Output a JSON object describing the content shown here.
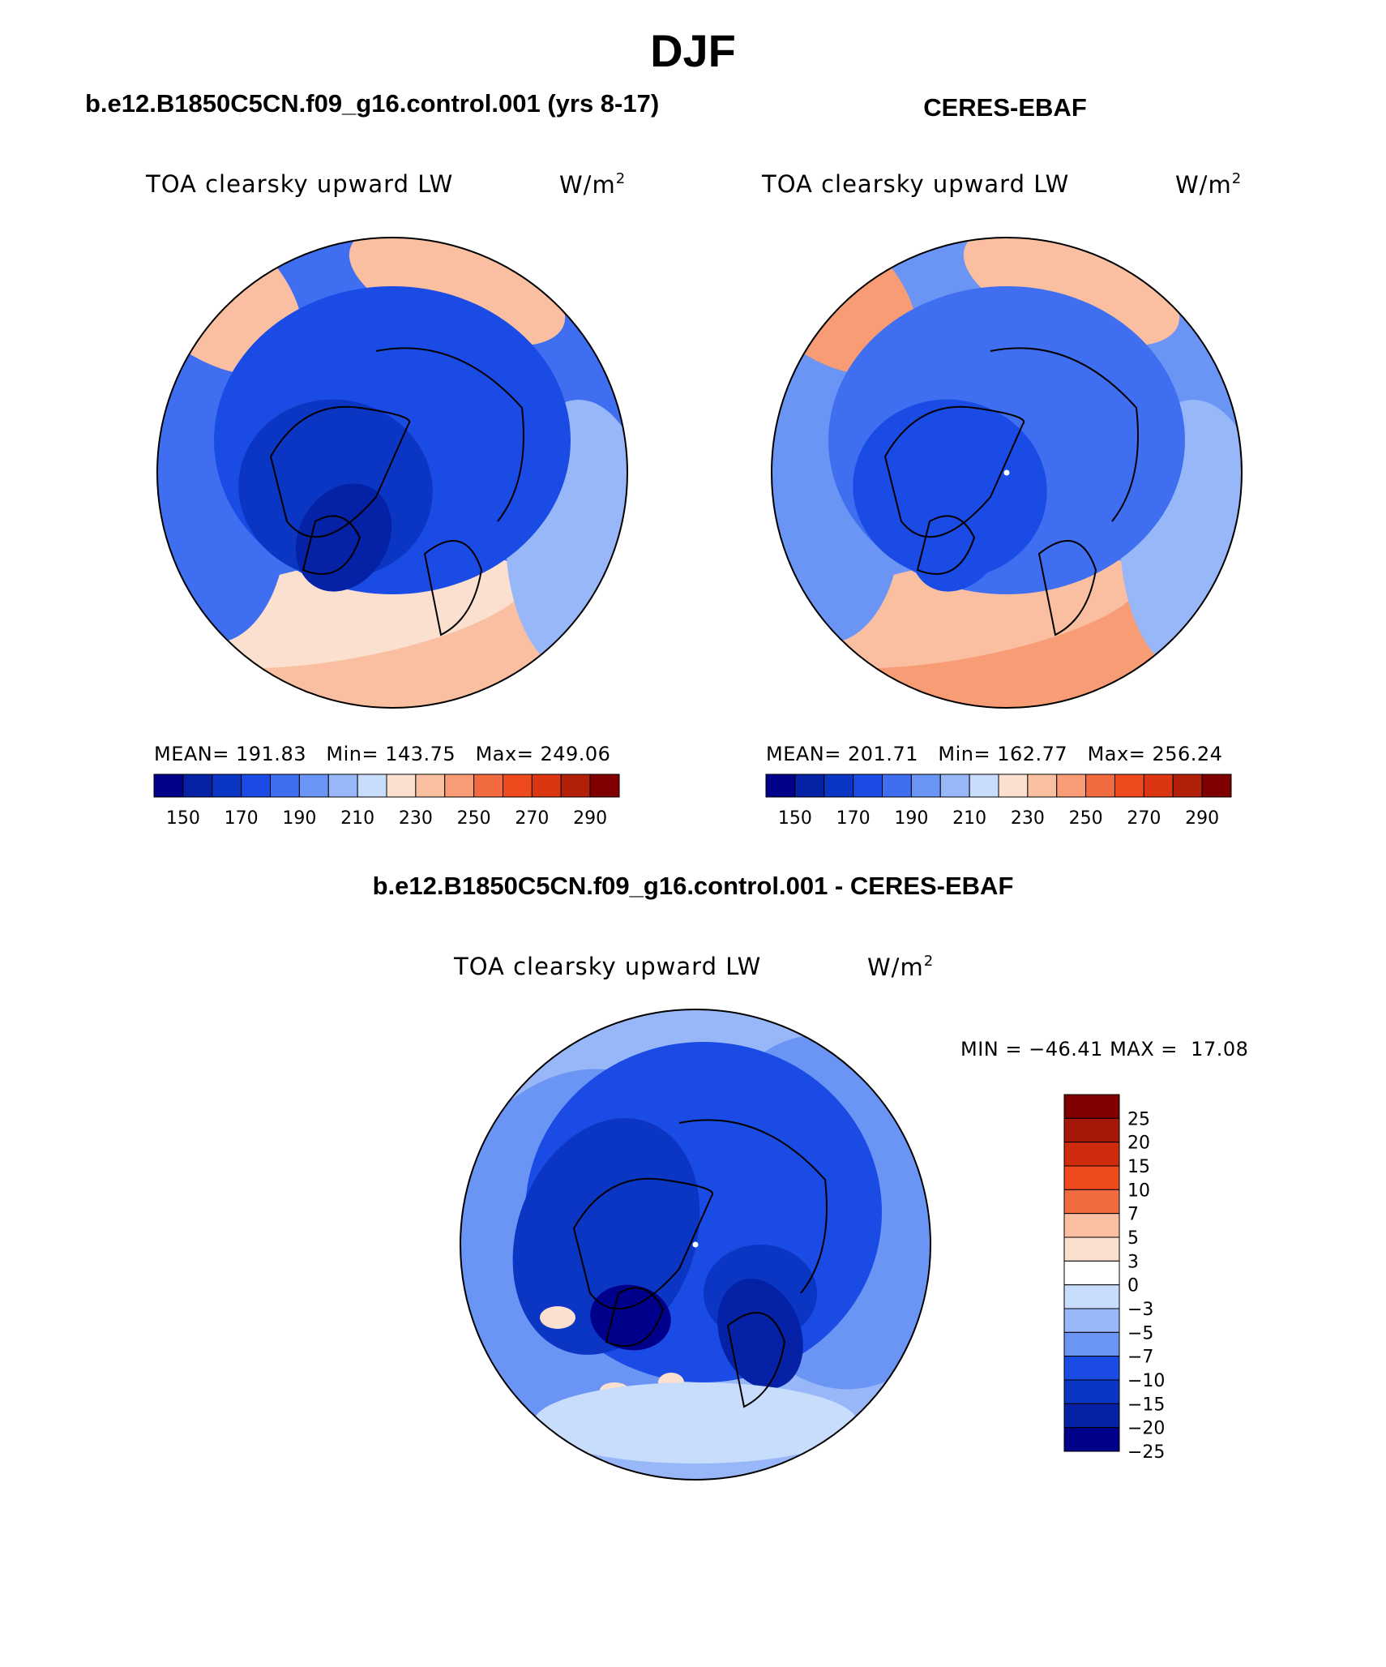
{
  "title": "DJF",
  "chart_data": [
    {
      "type": "map-contour",
      "panel": "model",
      "header": "b.e12.B1850C5CN.f09_g16.control.001 (yrs 8-17)",
      "field": "TOA clearsky upward LW",
      "units": "W/m",
      "units_exp": "2",
      "projection": "north polar stereographic",
      "stats": {
        "mean_label": "MEAN=",
        "mean": "191.83",
        "min_label": "Min=",
        "min": "143.75",
        "max_label": "Max=",
        "max": "249.06"
      },
      "colorbar": {
        "colors": [
          "#00008b",
          "#0521a5",
          "#0a36c3",
          "#1a4be4",
          "#3f6ff0",
          "#6b95f5",
          "#98b7f8",
          "#c8dcfb",
          "#fbe0cf",
          "#f9bfa0",
          "#f79c75",
          "#f26b40",
          "#ee4a1e",
          "#db3512",
          "#b3200a",
          "#800000"
        ],
        "labels": [
          "150",
          "170",
          "190",
          "210",
          "230",
          "250",
          "270",
          "290"
        ]
      }
    },
    {
      "type": "map-contour",
      "panel": "observations",
      "header": "CERES-EBAF",
      "field": "TOA clearsky upward LW",
      "units": "W/m",
      "units_exp": "2",
      "projection": "north polar stereographic",
      "stats": {
        "mean_label": "MEAN=",
        "mean": "201.71",
        "min_label": "Min=",
        "min": "162.77",
        "max_label": "Max=",
        "max": "256.24"
      },
      "colorbar": {
        "colors": [
          "#00008b",
          "#0521a5",
          "#0a36c3",
          "#1a4be4",
          "#3f6ff0",
          "#6b95f5",
          "#98b7f8",
          "#c8dcfb",
          "#fbe0cf",
          "#f9bfa0",
          "#f79c75",
          "#f26b40",
          "#ee4a1e",
          "#db3512",
          "#b3200a",
          "#800000"
        ],
        "labels": [
          "150",
          "170",
          "190",
          "210",
          "230",
          "250",
          "270",
          "290"
        ]
      }
    },
    {
      "type": "map-contour",
      "panel": "difference",
      "header": "b.e12.B1850C5CN.f09_g16.control.001 - CERES-EBAF",
      "field": "TOA clearsky upward LW",
      "units": "W/m",
      "units_exp": "2",
      "projection": "north polar stereographic",
      "stats_text": {
        "min_label": "MIN =",
        "min": "−46.41",
        "max_label": "MAX =",
        "max": "17.08"
      },
      "colorbar": {
        "orientation": "vertical",
        "colors_top_to_bottom": [
          "#800000",
          "#a5180a",
          "#cf2c0e",
          "#ee4a1e",
          "#f26b40",
          "#f9bfa0",
          "#fbe0cf",
          "#ffffff",
          "#c8dcfb",
          "#98b7f8",
          "#6b95f5",
          "#1a4be4",
          "#0a36c3",
          "#0521a5",
          "#00008b"
        ],
        "labels_top_to_bottom": [
          "25",
          "20",
          "15",
          "10",
          "7",
          "5",
          "3",
          "0",
          "−3",
          "−5",
          "−7",
          "−10",
          "−15",
          "−20",
          "−25"
        ]
      }
    }
  ]
}
